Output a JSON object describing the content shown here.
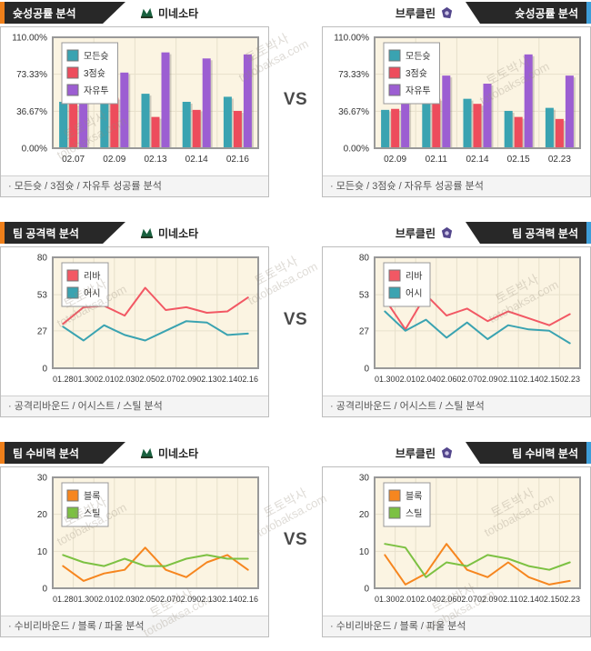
{
  "vs_label": "VS",
  "teams": {
    "left": "미네소타",
    "right": "브루클린"
  },
  "watermark": {
    "site": "토토박사",
    "domain": "totobaksa.com"
  },
  "colors": {
    "accent_left": "#EF7F1A",
    "accent_right": "#3E9ED9",
    "tab_bg": "#282828",
    "plot_bg": "#FBF4E2",
    "plot_border": "#999999",
    "grid": "#E7E0CB",
    "teal": "#3AA3B1",
    "red": "#ED4C5C",
    "purple": "#9C5ED2",
    "orange": "#F6861F",
    "green": "#7CC142"
  },
  "rows": [
    {
      "title": "슛성공률 분석",
      "footer": "· 모든슛 / 3점슛 / 자유투 성공률 분석"
    },
    {
      "title": "팀 공격력 분석",
      "footer": "· 공격리바운드 / 어시스트 / 스틸 분석"
    },
    {
      "title": "팀 수비력 분석",
      "footer": "· 수비리바운드 / 블록 / 파울 분석"
    }
  ],
  "chart_data": [
    {
      "id": "minnesota-shot-success",
      "type": "bar",
      "title": "슛성공률 분석 - 미네소타",
      "categories": [
        "02.07",
        "02.09",
        "02.13",
        "02.14",
        "02.16"
      ],
      "series": [
        {
          "name": "모든슛",
          "color": "#3AA3B1",
          "values": [
            46,
            53,
            54,
            46,
            51
          ]
        },
        {
          "name": "3점슛",
          "color": "#ED4C5C",
          "values": [
            44,
            50,
            31,
            38,
            37
          ]
        },
        {
          "name": "자유투",
          "color": "#9C5ED2",
          "values": [
            59,
            75,
            95,
            89,
            93
          ]
        }
      ],
      "unit": "%",
      "ylim": [
        0,
        110
      ],
      "ytick_values": [
        0,
        36.67,
        73.33,
        110
      ],
      "ytick_labels": [
        "0.00%",
        "36.67%",
        "73.33%",
        "110.00%"
      ],
      "grid": true,
      "legend_position": "top-left"
    },
    {
      "id": "brooklyn-shot-success",
      "type": "bar",
      "title": "슛성공률 분석 - 브루클린",
      "categories": [
        "02.09",
        "02.11",
        "02.14",
        "02.15",
        "02.23"
      ],
      "series": [
        {
          "name": "모든슛",
          "color": "#3AA3B1",
          "values": [
            38,
            55,
            49,
            37,
            40
          ]
        },
        {
          "name": "3점슛",
          "color": "#ED4C5C",
          "values": [
            39,
            49,
            44,
            31,
            29
          ]
        },
        {
          "name": "자유투",
          "color": "#9C5ED2",
          "values": [
            57,
            72,
            64,
            93,
            72
          ]
        }
      ],
      "unit": "%",
      "ylim": [
        0,
        110
      ],
      "ytick_values": [
        0,
        36.67,
        73.33,
        110
      ],
      "ytick_labels": [
        "0.00%",
        "36.67%",
        "73.33%",
        "110.00%"
      ],
      "grid": true,
      "legend_position": "top-left"
    },
    {
      "id": "minnesota-offense",
      "type": "line",
      "title": "팀 공격력 분석 - 미네소타",
      "categories": [
        "01.28",
        "01.30",
        "02.01",
        "02.03",
        "02.05",
        "02.07",
        "02.09",
        "02.13",
        "02.14",
        "02.16"
      ],
      "series": [
        {
          "name": "리바",
          "color": "#F25864",
          "values": [
            32,
            44,
            45,
            38,
            58,
            42,
            44,
            40,
            41,
            51
          ]
        },
        {
          "name": "어시",
          "color": "#3AA3B1",
          "values": [
            30,
            20,
            31,
            24,
            20,
            27,
            34,
            33,
            24,
            25
          ]
        }
      ],
      "ylim": [
        0,
        80
      ],
      "ytick_values": [
        0,
        27,
        53,
        80
      ],
      "ytick_labels": [
        "0",
        "27",
        "53",
        "80"
      ],
      "grid": true,
      "legend_position": "top-left"
    },
    {
      "id": "brooklyn-offense",
      "type": "line",
      "title": "팀 공격력 분석 - 브루클린",
      "categories": [
        "01.30",
        "02.01",
        "02.04",
        "02.06",
        "02.07",
        "02.09",
        "02.11",
        "02.14",
        "02.15",
        "02.23"
      ],
      "series": [
        {
          "name": "리바",
          "color": "#F25864",
          "values": [
            50,
            28,
            53,
            38,
            43,
            34,
            41,
            36,
            31,
            39
          ]
        },
        {
          "name": "어시",
          "color": "#3AA3B1",
          "values": [
            41,
            27,
            35,
            22,
            33,
            21,
            31,
            28,
            27,
            18
          ]
        }
      ],
      "ylim": [
        0,
        80
      ],
      "ytick_values": [
        0,
        27,
        53,
        80
      ],
      "ytick_labels": [
        "0",
        "27",
        "53",
        "80"
      ],
      "grid": true,
      "legend_position": "top-left"
    },
    {
      "id": "minnesota-defense",
      "type": "line",
      "title": "팀 수비력 분석 - 미네소타",
      "categories": [
        "01.28",
        "01.30",
        "02.01",
        "02.03",
        "02.05",
        "02.07",
        "02.09",
        "02.13",
        "02.14",
        "02.16"
      ],
      "series": [
        {
          "name": "블록",
          "color": "#F6861F",
          "values": [
            6,
            2,
            4,
            5,
            11,
            5,
            3,
            7,
            9,
            5
          ]
        },
        {
          "name": "스틸",
          "color": "#7CC142",
          "values": [
            9,
            7,
            6,
            8,
            6,
            6,
            8,
            9,
            8,
            8
          ]
        }
      ],
      "ylim": [
        0,
        30
      ],
      "ytick_values": [
        0,
        10,
        20,
        30
      ],
      "ytick_labels": [
        "0",
        "10",
        "20",
        "30"
      ],
      "grid": true,
      "legend_position": "top-left"
    },
    {
      "id": "brooklyn-defense",
      "type": "line",
      "title": "팀 수비력 분석 - 브루클린",
      "categories": [
        "01.30",
        "02.01",
        "02.04",
        "02.06",
        "02.07",
        "02.09",
        "02.11",
        "02.14",
        "02.15",
        "02.23"
      ],
      "series": [
        {
          "name": "블록",
          "color": "#F6861F",
          "values": [
            9,
            1,
            4,
            12,
            5,
            3,
            7,
            3,
            1,
            2
          ]
        },
        {
          "name": "스틸",
          "color": "#7CC142",
          "values": [
            12,
            11,
            3,
            7,
            6,
            9,
            8,
            6,
            5,
            7
          ]
        }
      ],
      "ylim": [
        0,
        30
      ],
      "ytick_values": [
        0,
        10,
        20,
        30
      ],
      "ytick_labels": [
        "0",
        "10",
        "20",
        "30"
      ],
      "grid": true,
      "legend_position": "top-left"
    }
  ]
}
